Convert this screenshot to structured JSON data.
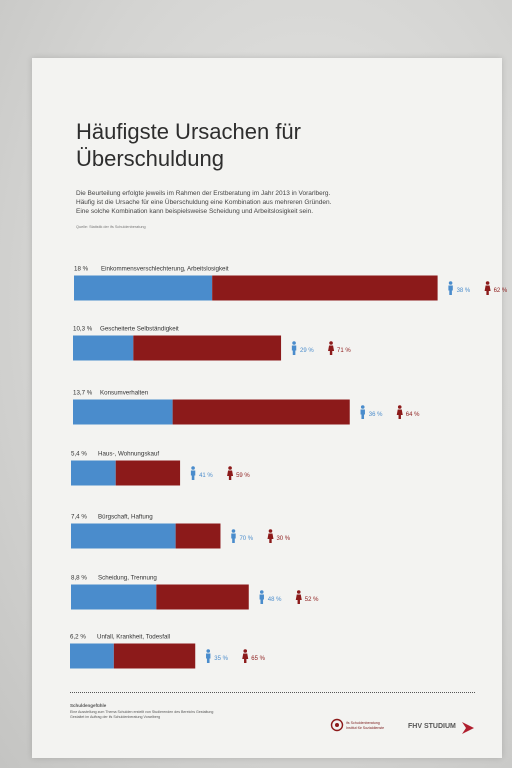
{
  "title_line1": "Häufigste Ursachen für",
  "title_line2": "Überschuldung",
  "description": [
    "Die Beurteilung erfolgte jeweils im Rahmen der Erstberatung im Jahr 2013 in Vorarlberg.",
    "Häufig ist die Ursache für eine Überschuldung eine Kombination aus mehreren Gründen.",
    "Eine solche Kombination kann beispielsweise Scheidung und Arbeitslosigkeit sein."
  ],
  "source": "Quelle: Statistik der ifs Schuldenberatung",
  "colors": {
    "male": "#4a8ccc",
    "female": "#8c1a1a",
    "text": "#333333"
  },
  "icons": {
    "male": "male-person-icon",
    "female": "female-person-icon"
  },
  "chart_data": {
    "type": "bar",
    "orientation": "horizontal",
    "stacked": true,
    "categories": [
      "Einkommensverschlechterung, Arbeitslosigkeit",
      "Gescheiterte Selbständigkeit",
      "Konsumverhalten",
      "Haus-, Wohnungskauf",
      "Bürgschaft, Haftung",
      "Scheidung, Trennung",
      "Unfall, Krankheit, Todesfall"
    ],
    "share_labels": [
      "18 %",
      "10,3 %",
      "13,7 %",
      "5,4 %",
      "7,4 %",
      "8,8 %",
      "6,2 %"
    ],
    "share": [
      18,
      10.3,
      13.7,
      5.4,
      7.4,
      8.8,
      6.2
    ],
    "series": [
      {
        "values": [
          38,
          29,
          36,
          41,
          70,
          48,
          35
        ],
        "labels": [
          "38 %",
          "29 %",
          "36 %",
          "41 %",
          "70 %",
          "48 %",
          "35 %"
        ]
      },
      {
        "values": [
          62,
          71,
          64,
          59,
          30,
          52,
          65
        ],
        "labels": [
          "62 %",
          "71 %",
          "64 %",
          "59 %",
          "30 %",
          "52 %",
          "65 %"
        ]
      }
    ]
  },
  "footer": {
    "title": "Schuldengefühle",
    "line1": "Eine Ausstellung zum Thema Schulden erstellt von Studierenden des Bereichs Gestaltung",
    "line2": "Gestaltet im Auftrag der ifs Schuldenberatung Vorarlberg",
    "logo1_line1": "ifs Schuldenberatung",
    "logo1_line2": "Institut für Sozialdienste",
    "logo2": "FHV STUDIUM"
  }
}
